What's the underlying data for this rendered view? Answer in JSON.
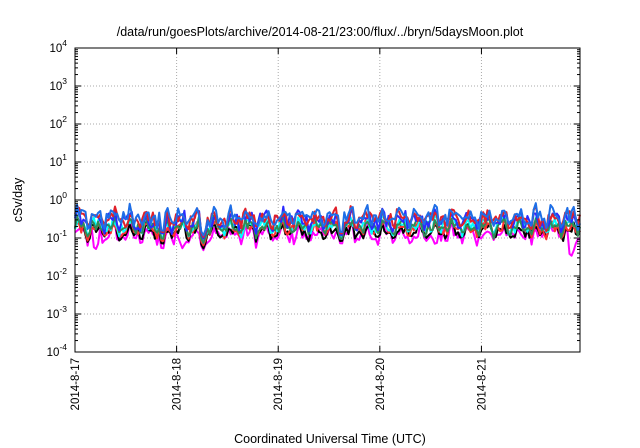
{
  "chart_data": {
    "type": "line",
    "title": "/data/run/goesPlots/archive/2014-08-21/23:00/flux/../bryn/5daysMoon.plot",
    "xlabel": "Coordinated Universal Time (UTC)",
    "ylabel": "cSv/day",
    "x_ticks": [
      "2014-8-17",
      "2014-8-18",
      "2014-8-19",
      "2014-8-20",
      "2014-8-21"
    ],
    "x_range_days": [
      0,
      4.97
    ],
    "y_scale": "log",
    "ylim": [
      0.0001,
      10000
    ],
    "y_ticks": [
      {
        "base": "10",
        "exp": "-4"
      },
      {
        "base": "10",
        "exp": "-3"
      },
      {
        "base": "10",
        "exp": "-2"
      },
      {
        "base": "10",
        "exp": "-1"
      },
      {
        "base": "10",
        "exp": "0"
      },
      {
        "base": "10",
        "exp": "1"
      },
      {
        "base": "10",
        "exp": "2"
      },
      {
        "base": "10",
        "exp": "3"
      },
      {
        "base": "10",
        "exp": "4"
      }
    ],
    "grid": "dotted",
    "legend": "none",
    "series": [
      {
        "color": "#ff00ff",
        "level": 0.125,
        "amp": 0.35,
        "dips": [
          [
            0.2,
            0.045
          ],
          [
            0.86,
            0.045
          ],
          [
            1.06,
            0.05
          ],
          [
            1.26,
            0.045
          ],
          [
            1.95,
            0.08
          ],
          [
            2.28,
            0.09
          ],
          [
            2.62,
            0.06
          ],
          [
            3.55,
            0.06
          ],
          [
            4.88,
            0.03
          ]
        ]
      },
      {
        "color": "#000000",
        "level": 0.15,
        "amp": 0.25,
        "dips": [
          [
            0.86,
            0.06
          ],
          [
            1.26,
            0.05
          ],
          [
            2.62,
            0.07
          ]
        ]
      },
      {
        "color": "#ff3030",
        "level": 0.175,
        "amp": 0.25,
        "dips": [
          [
            0.86,
            0.07
          ],
          [
            1.26,
            0.06
          ],
          [
            2.62,
            0.08
          ]
        ]
      },
      {
        "color": "#00ffff",
        "level": 0.215,
        "amp": 0.3,
        "dips": [
          [
            0.86,
            0.09
          ],
          [
            1.26,
            0.07
          ],
          [
            2.62,
            0.09
          ]
        ]
      },
      {
        "color": "#2e8b57",
        "level": 0.2,
        "amp": 0.25,
        "dips": [
          [
            0.86,
            0.08
          ],
          [
            1.26,
            0.07
          ],
          [
            2.62,
            0.08
          ]
        ]
      },
      {
        "color": "#2a2aff",
        "level": 0.29,
        "amp": 0.35,
        "dips": [
          [
            0.86,
            0.11
          ],
          [
            1.26,
            0.09
          ],
          [
            2.62,
            0.1
          ]
        ]
      },
      {
        "color": "#e0202a",
        "level": 0.33,
        "amp": 0.35,
        "dips": [
          [
            0.86,
            0.12
          ],
          [
            1.26,
            0.1
          ],
          [
            2.62,
            0.11
          ]
        ]
      },
      {
        "color": "#1e6ee6",
        "level": 0.36,
        "amp": 0.35,
        "dips": [
          [
            0.86,
            0.13
          ],
          [
            1.26,
            0.11
          ],
          [
            2.62,
            0.12
          ]
        ]
      }
    ]
  }
}
